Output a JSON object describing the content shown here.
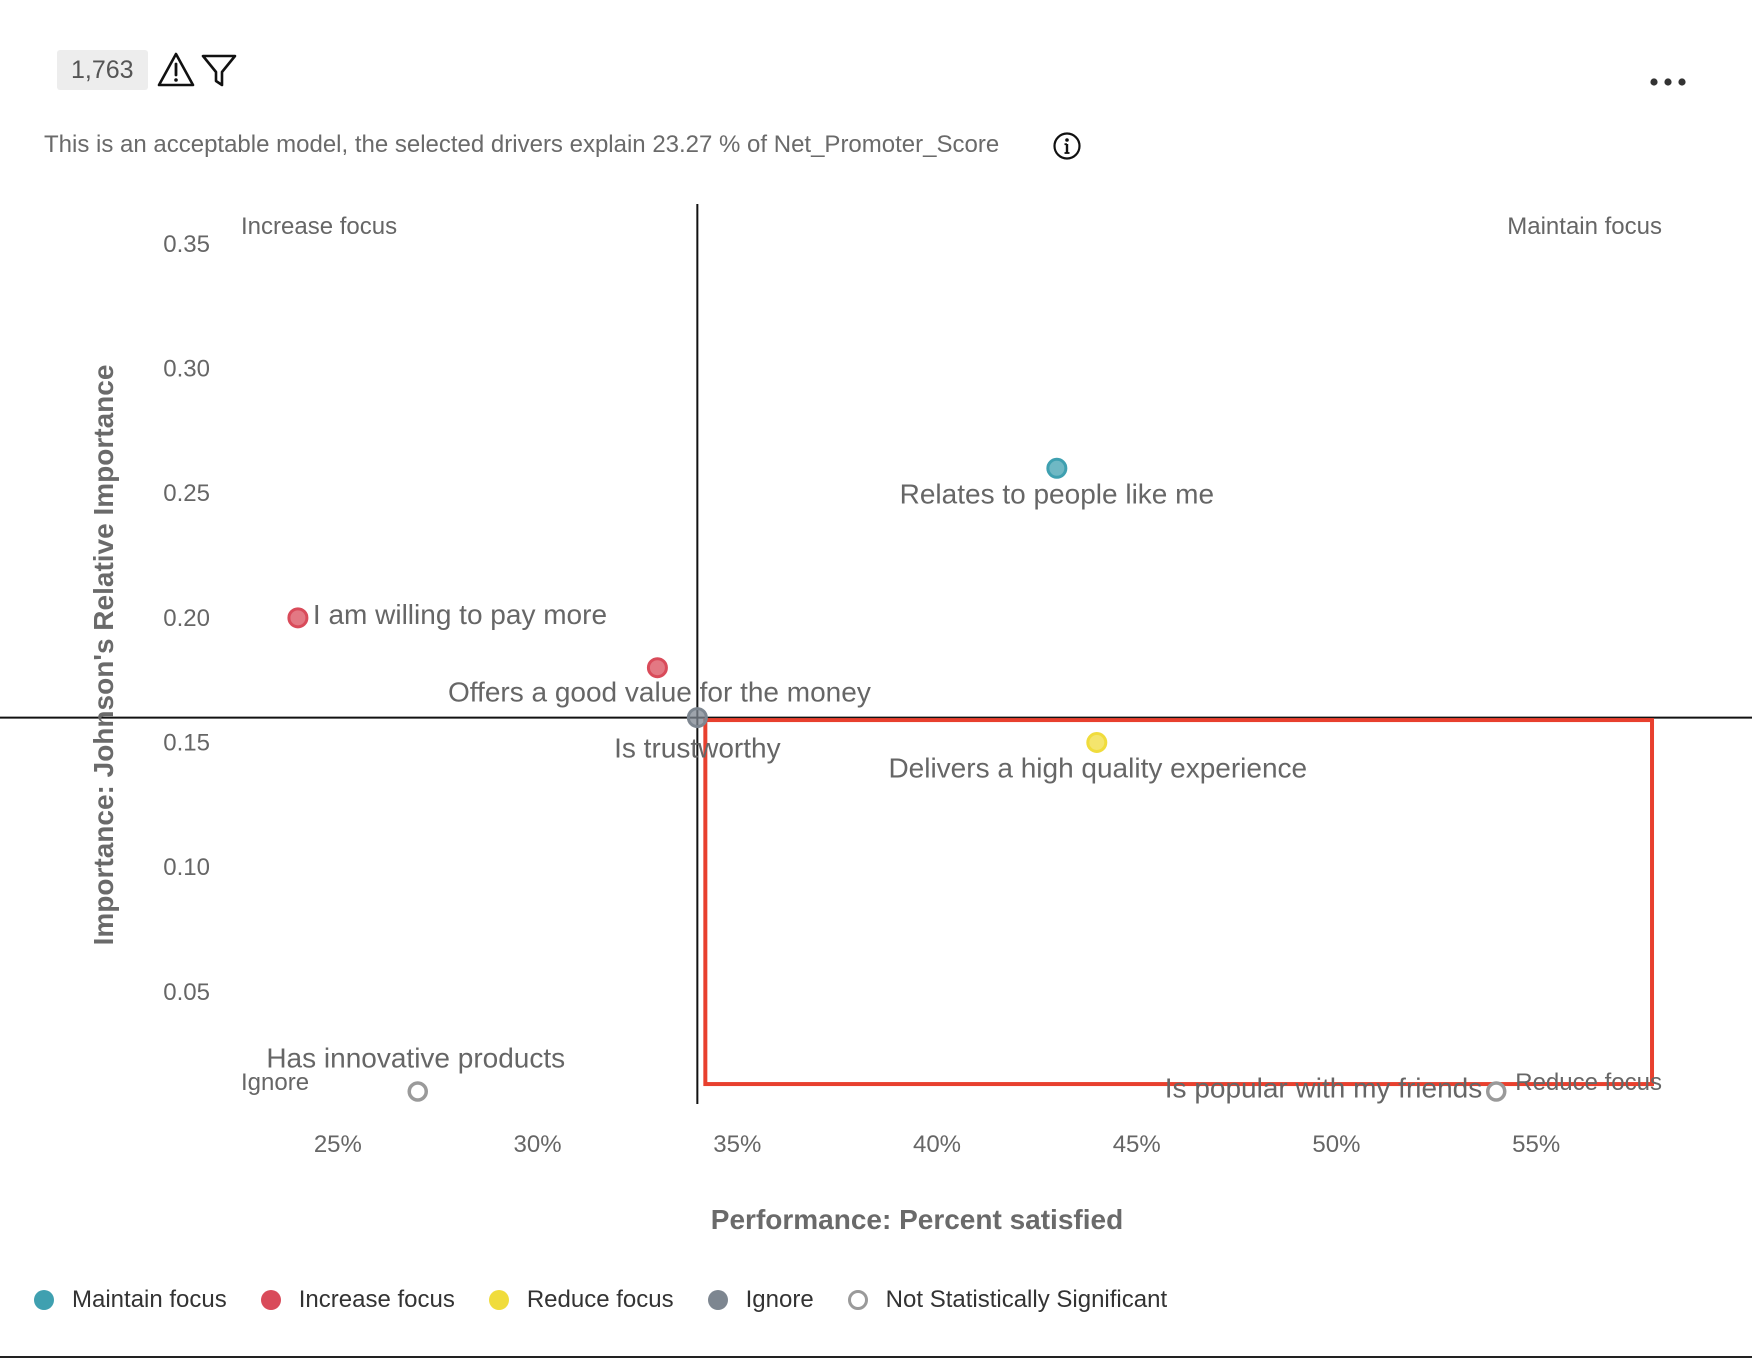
{
  "header": {
    "response_count": "1,763",
    "warning_icon": "warning-triangle-icon",
    "filter_icon": "filter-funnel-icon",
    "more_icon": "more-horizontal-icon"
  },
  "model_summary": {
    "text": "This is an acceptable model, the selected drivers explain 23.27 % of Net_Promoter_Score",
    "info_icon": "info-circle-icon"
  },
  "chart_data": {
    "type": "scatter",
    "title": "",
    "xlabel": "Performance: Percent satisfied",
    "ylabel": "Importance: Johnson's Relative Importance",
    "xlim": [
      22.4,
      58.2
    ],
    "ylim": [
      0.005,
      0.366
    ],
    "x_ticks": [
      {
        "value": 25,
        "label": "25%"
      },
      {
        "value": 30,
        "label": "30%"
      },
      {
        "value": 35,
        "label": "35%"
      },
      {
        "value": 40,
        "label": "40%"
      },
      {
        "value": 45,
        "label": "45%"
      },
      {
        "value": 50,
        "label": "50%"
      },
      {
        "value": 55,
        "label": "55%"
      }
    ],
    "y_ticks": [
      {
        "value": 0.35,
        "label": "0.35"
      },
      {
        "value": 0.3,
        "label": "0.30"
      },
      {
        "value": 0.25,
        "label": "0.25"
      },
      {
        "value": 0.2,
        "label": "0.20"
      },
      {
        "value": 0.15,
        "label": "0.15"
      },
      {
        "value": 0.1,
        "label": "0.10"
      },
      {
        "value": 0.05,
        "label": "0.05"
      }
    ],
    "quadrant_divider": {
      "x": 34,
      "y": 0.16
    },
    "quadrant_labels": {
      "top_left": "Increase focus",
      "top_right": "Maintain focus",
      "bottom_left": "Ignore",
      "bottom_right": "Reduce focus"
    },
    "categories": {
      "maintain": {
        "label": "Maintain focus",
        "color": "#3fa0b0"
      },
      "increase": {
        "label": "Increase focus",
        "color": "#d94b5a"
      },
      "reduce": {
        "label": "Reduce focus",
        "color": "#f0dc3c"
      },
      "ignore": {
        "label": "Ignore",
        "color": "#7d8690"
      },
      "not_significant": {
        "label": "Not Statistically Significant",
        "color": "#9a9a9a"
      }
    },
    "points": [
      {
        "label": "Relates to people like me",
        "x": 43,
        "y": 0.26,
        "category": "maintain"
      },
      {
        "label": "I am willing to pay more",
        "x": 24,
        "y": 0.2,
        "category": "increase"
      },
      {
        "label": "Offers a good value for the money",
        "x": 33,
        "y": 0.18,
        "category": "increase"
      },
      {
        "label": "Is trustworthy",
        "x": 34,
        "y": 0.16,
        "category": "ignore"
      },
      {
        "label": "Delivers a high quality experience",
        "x": 44,
        "y": 0.15,
        "category": "reduce"
      },
      {
        "label": "Has innovative products",
        "x": 27,
        "y": 0.01,
        "category": "not_significant"
      },
      {
        "label": "Is popular with my friends",
        "x": 54,
        "y": 0.01,
        "category": "not_significant"
      }
    ],
    "legend_position": "bottom-left",
    "grid": false
  },
  "legend": {
    "items": [
      {
        "label": "Maintain focus",
        "color": "#3fa0b0",
        "hollow": false
      },
      {
        "label": "Increase focus",
        "color": "#d94b5a",
        "hollow": false
      },
      {
        "label": "Reduce focus",
        "color": "#f0dc3c",
        "hollow": false
      },
      {
        "label": "Ignore",
        "color": "#7d8690",
        "hollow": false
      },
      {
        "label": "Not Statistically Significant",
        "color": "#9a9a9a",
        "hollow": true
      }
    ]
  },
  "highlight": {
    "color": "#e8402e",
    "x_range": [
      34.2,
      57.9
    ],
    "y_range": [
      0.013,
      0.159
    ]
  }
}
